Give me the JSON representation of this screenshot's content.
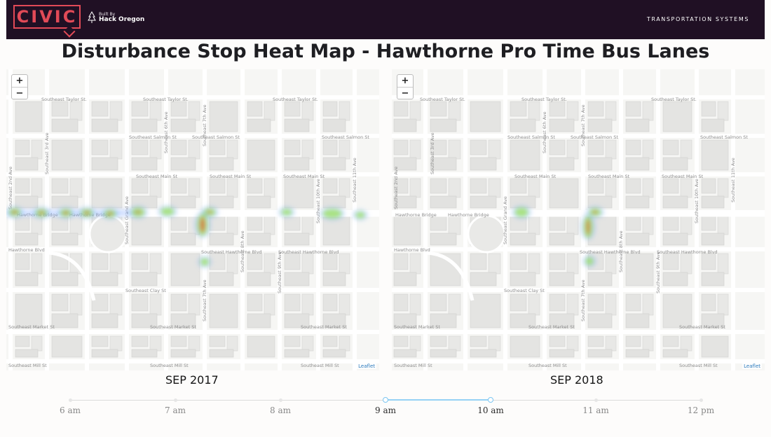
{
  "header": {
    "logo_text": "CIVIC",
    "built_by_small": "Built By",
    "built_by_org": "Hack Oregon",
    "section": "TRANSPORTATION SYSTEMS"
  },
  "title": "Disturbance Stop Heat Map - Hawthorne Pro Time Bus Lanes",
  "maps": [
    {
      "label": "SEP 2017",
      "zoom_in": "+",
      "zoom_out": "−",
      "attribution": "Leaflet"
    },
    {
      "label": "SEP 2018",
      "zoom_in": "+",
      "zoom_out": "−",
      "attribution": "Leaflet"
    }
  ],
  "street_labels": {
    "taylor": "Southeast Taylor St.",
    "salmon": "Southeast Salmon St",
    "main": "Southeast Main St",
    "hawthorne_bridge": "Hawthorne Bridge",
    "hawthorne_blvd": "Southeast Hawthorne Blvd",
    "hawthorne_blvd_short": "Hawthorne Blvd",
    "clay": "Southeast Clay St",
    "market": "Southeast Market St",
    "mill": "Southeast Mill St",
    "grand": "Southeast Grand Ave",
    "sixth": "Southeast 6th Ave",
    "seventh": "Southeast 7th Ave",
    "eighth": "Southeast 8th Ave",
    "ninth": "Southeast 9th Ave",
    "tenth": "Southeast 10th Ave",
    "eleventh": "Southeast 11th Ave",
    "second": "Southeast 2nd Ave",
    "third": "Southeast 3rd Ave"
  },
  "timeline": {
    "labels": [
      "6 am",
      "7 am",
      "8 am",
      "9 am",
      "10 am",
      "11 am",
      "12 pm"
    ],
    "selected_start": "9 am",
    "selected_end": "10 am"
  },
  "colors": {
    "header_bg": "#201024",
    "accent": "#e14a57",
    "timeline_selection": "#95d1f5",
    "heat_low": "#7fa8ff",
    "heat_mid": "#9be35a",
    "heat_high": "#e0432f"
  }
}
